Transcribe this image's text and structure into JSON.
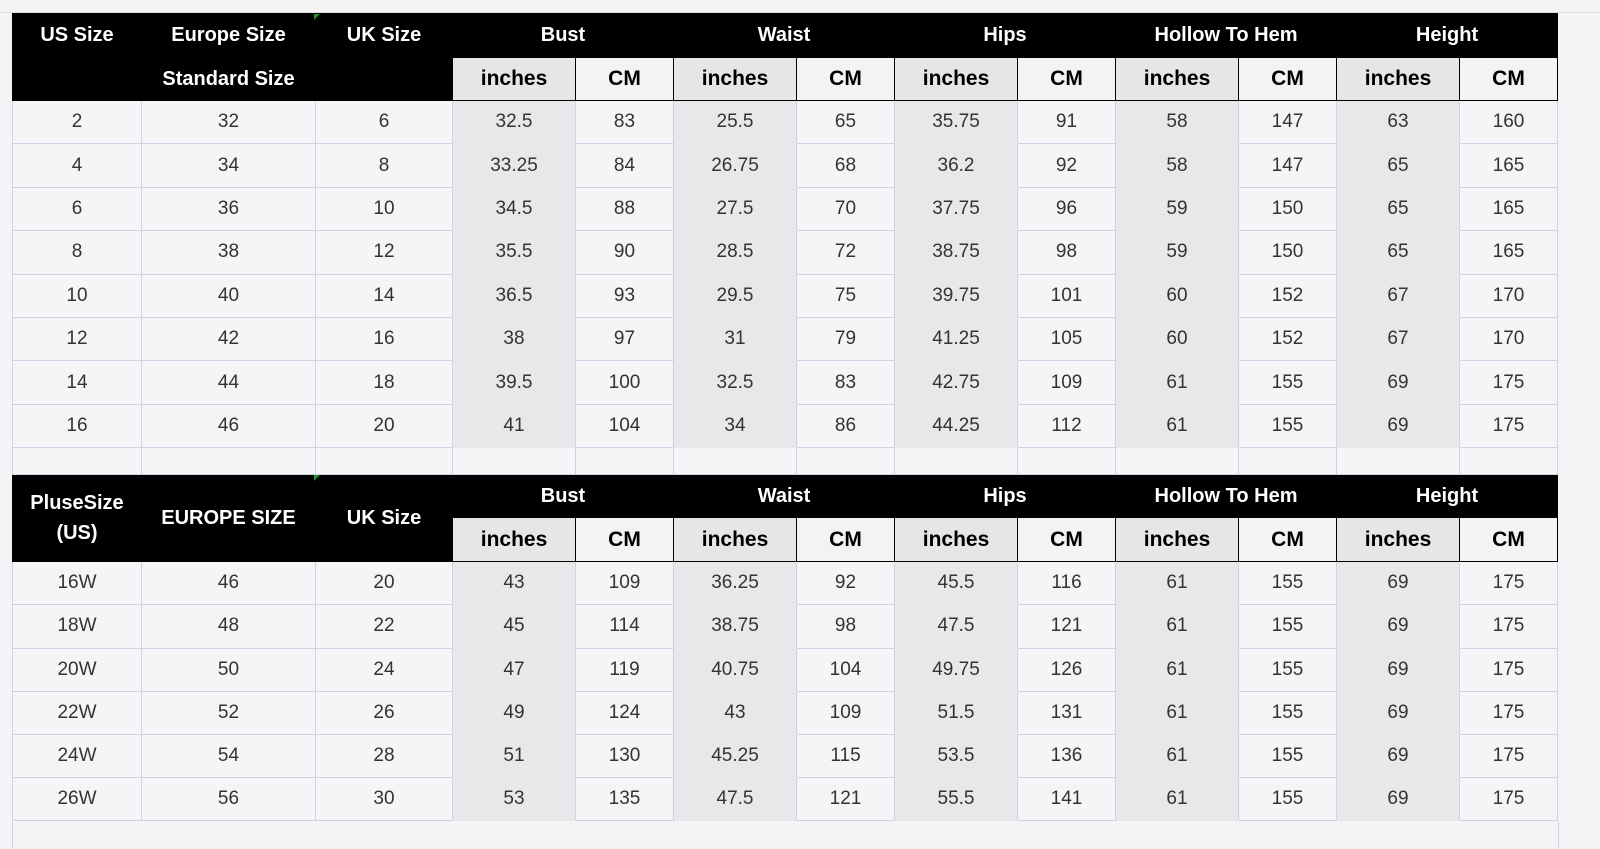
{
  "standard": {
    "headers": {
      "us": "US Size",
      "europe": "Europe Size",
      "europe_sub": "Standard Size",
      "uk": "UK Size",
      "groups": [
        "Bust",
        "Waist",
        "Hips",
        "Hollow To Hem",
        "Height"
      ],
      "units": [
        "inches",
        "CM"
      ]
    },
    "rows": [
      [
        "2",
        "32",
        "6",
        "32.5",
        "83",
        "25.5",
        "65",
        "35.75",
        "91",
        "58",
        "147",
        "63",
        "160"
      ],
      [
        "4",
        "34",
        "8",
        "33.25",
        "84",
        "26.75",
        "68",
        "36.2",
        "92",
        "58",
        "147",
        "65",
        "165"
      ],
      [
        "6",
        "36",
        "10",
        "34.5",
        "88",
        "27.5",
        "70",
        "37.75",
        "96",
        "59",
        "150",
        "65",
        "165"
      ],
      [
        "8",
        "38",
        "12",
        "35.5",
        "90",
        "28.5",
        "72",
        "38.75",
        "98",
        "59",
        "150",
        "65",
        "165"
      ],
      [
        "10",
        "40",
        "14",
        "36.5",
        "93",
        "29.5",
        "75",
        "39.75",
        "101",
        "60",
        "152",
        "67",
        "170"
      ],
      [
        "12",
        "42",
        "16",
        "38",
        "97",
        "31",
        "79",
        "41.25",
        "105",
        "60",
        "152",
        "67",
        "170"
      ],
      [
        "14",
        "44",
        "18",
        "39.5",
        "100",
        "32.5",
        "83",
        "42.75",
        "109",
        "61",
        "155",
        "69",
        "175"
      ],
      [
        "16",
        "46",
        "20",
        "41",
        "104",
        "34",
        "86",
        "44.25",
        "112",
        "61",
        "155",
        "69",
        "175"
      ]
    ]
  },
  "plus": {
    "headers": {
      "us": "PluseSize (US)",
      "europe": "EUROPE SIZE",
      "uk": "UK Size",
      "groups": [
        "Bust",
        "Waist",
        "Hips",
        "Hollow To Hem",
        "Height"
      ],
      "units": [
        "inches",
        "CM"
      ]
    },
    "rows": [
      [
        "16W",
        "46",
        "20",
        "43",
        "109",
        "36.25",
        "92",
        "45.5",
        "116",
        "61",
        "155",
        "69",
        "175"
      ],
      [
        "18W",
        "48",
        "22",
        "45",
        "114",
        "38.75",
        "98",
        "47.5",
        "121",
        "61",
        "155",
        "69",
        "175"
      ],
      [
        "20W",
        "50",
        "24",
        "47",
        "119",
        "40.75",
        "104",
        "49.75",
        "126",
        "61",
        "155",
        "69",
        "175"
      ],
      [
        "22W",
        "52",
        "26",
        "49",
        "124",
        "43",
        "109",
        "51.5",
        "131",
        "61",
        "155",
        "69",
        "175"
      ],
      [
        "24W",
        "54",
        "28",
        "51",
        "130",
        "45.25",
        "115",
        "53.5",
        "136",
        "61",
        "155",
        "69",
        "175"
      ],
      [
        "26W",
        "56",
        "30",
        "53",
        "135",
        "47.5",
        "121",
        "55.5",
        "141",
        "61",
        "155",
        "69",
        "175"
      ]
    ]
  }
}
